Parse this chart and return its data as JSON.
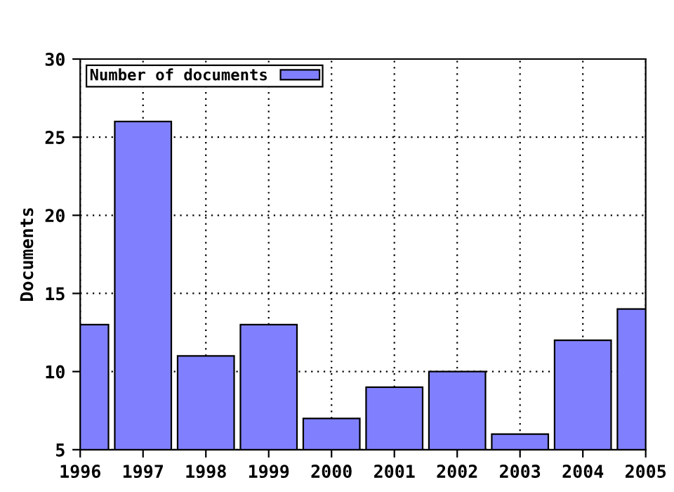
{
  "chart_data": {
    "type": "bar",
    "ylabel": "Documents",
    "x": [
      1996,
      1997,
      1998,
      1999,
      2000,
      2001,
      2002,
      2003,
      2004,
      2005
    ],
    "series": [
      {
        "name": "Number of documents",
        "color": "#8080ff",
        "values": [
          13,
          26,
          11,
          13,
          7,
          9,
          10,
          6,
          12,
          14
        ]
      }
    ],
    "xlim": [
      1996,
      2005
    ],
    "xticks": [
      1996,
      1997,
      1998,
      1999,
      2000,
      2001,
      2002,
      2003,
      2004,
      2005
    ],
    "ylim": [
      5,
      30
    ],
    "yticks": [
      5,
      10,
      15,
      20,
      25,
      30
    ],
    "grid": true,
    "legend": "top left"
  }
}
